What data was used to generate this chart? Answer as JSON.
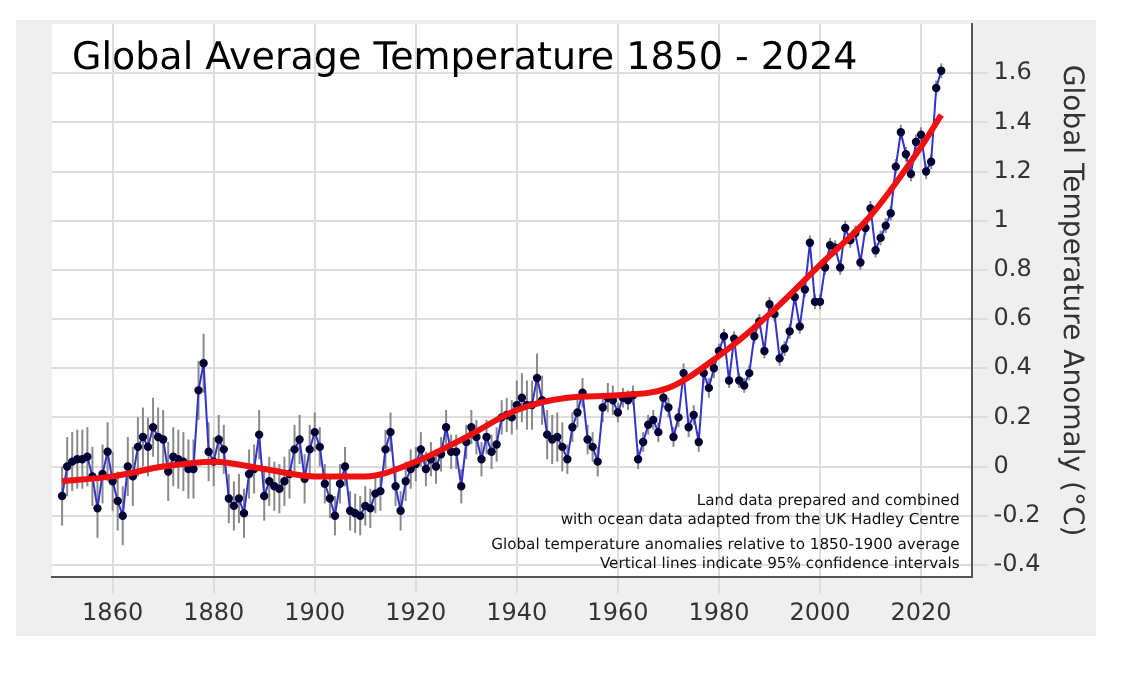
{
  "chart_data": {
    "type": "line",
    "title": "Global Average Temperature 1850 - 2024",
    "ylabel": "Global Temperature Anomaly (°C)",
    "annotations": [
      "Land data prepared and combined",
      "with ocean data adapted from the UK Hadley Centre",
      "Global temperature anomalies relative to 1850-1900 average",
      "Vertical lines indicate 95% confidence intervals"
    ],
    "xlim": [
      1848,
      2030
    ],
    "xticks": [
      1860,
      1880,
      1900,
      1920,
      1940,
      1960,
      1980,
      2000,
      2020
    ],
    "ylim": [
      -0.45,
      1.8
    ],
    "yticks": [
      {
        "value": -0.4,
        "label": "-0.4"
      },
      {
        "value": -0.2,
        "label": "-0.2"
      },
      0,
      0.2,
      0.4,
      0.6,
      0.8,
      1,
      1.2,
      1.4,
      1.6
    ],
    "grid": true,
    "marker": "circle",
    "line_style": "solid",
    "series": [
      {
        "color": "#3333cc",
        "x": [
          1850,
          1851,
          1852,
          1853,
          1854,
          1855,
          1856,
          1857,
          1858,
          1859,
          1860,
          1861,
          1862,
          1863,
          1864,
          1865,
          1866,
          1867,
          1868,
          1869,
          1870,
          1871,
          1872,
          1873,
          1874,
          1875,
          1876,
          1877,
          1878,
          1879,
          1880,
          1881,
          1882,
          1883,
          1884,
          1885,
          1886,
          1887,
          1888,
          1889,
          1890,
          1891,
          1892,
          1893,
          1894,
          1895,
          1896,
          1897,
          1898,
          1899,
          1900,
          1901,
          1902,
          1903,
          1904,
          1905,
          1906,
          1907,
          1908,
          1909,
          1910,
          1911,
          1912,
          1913,
          1914,
          1915,
          1916,
          1917,
          1918,
          1919,
          1920,
          1921,
          1922,
          1923,
          1924,
          1925,
          1926,
          1927,
          1928,
          1929,
          1930,
          1931,
          1932,
          1933,
          1934,
          1935,
          1936,
          1937,
          1938,
          1939,
          1940,
          1941,
          1942,
          1943,
          1944,
          1945,
          1946,
          1947,
          1948,
          1949,
          1950,
          1951,
          1952,
          1953,
          1954,
          1955,
          1956,
          1957,
          1958,
          1959,
          1960,
          1961,
          1962,
          1963,
          1964,
          1965,
          1966,
          1967,
          1968,
          1969,
          1970,
          1971,
          1972,
          1973,
          1974,
          1975,
          1976,
          1977,
          1978,
          1979,
          1980,
          1981,
          1982,
          1983,
          1984,
          1985,
          1986,
          1987,
          1988,
          1989,
          1990,
          1991,
          1992,
          1993,
          1994,
          1995,
          1996,
          1997,
          1998,
          1999,
          2000,
          2001,
          2002,
          2003,
          2004,
          2005,
          2006,
          2007,
          2008,
          2009,
          2010,
          2011,
          2012,
          2013,
          2014,
          2015,
          2016,
          2017,
          2018,
          2019,
          2020,
          2021,
          2022,
          2023,
          2024
        ],
        "values": [
          -0.12,
          0.0,
          0.02,
          0.03,
          0.03,
          0.04,
          -0.04,
          -0.17,
          -0.03,
          0.06,
          -0.06,
          -0.14,
          -0.2,
          0.0,
          -0.04,
          0.08,
          0.12,
          0.08,
          0.16,
          0.12,
          0.11,
          -0.02,
          0.04,
          0.03,
          0.02,
          -0.01,
          -0.01,
          0.31,
          0.42,
          0.06,
          0.02,
          0.11,
          0.07,
          -0.13,
          -0.16,
          -0.13,
          -0.19,
          -0.03,
          -0.01,
          0.13,
          -0.12,
          -0.06,
          -0.08,
          -0.09,
          -0.06,
          -0.03,
          0.07,
          0.11,
          -0.05,
          0.07,
          0.14,
          0.08,
          -0.07,
          -0.13,
          -0.2,
          -0.07,
          0.0,
          -0.18,
          -0.19,
          -0.2,
          -0.16,
          -0.17,
          -0.11,
          -0.1,
          0.07,
          0.14,
          -0.08,
          -0.18,
          -0.06,
          -0.01,
          0.01,
          0.07,
          -0.01,
          0.03,
          0.0,
          0.05,
          0.16,
          0.06,
          0.06,
          -0.08,
          0.1,
          0.16,
          0.12,
          0.03,
          0.12,
          0.06,
          0.09,
          0.2,
          0.21,
          0.2,
          0.25,
          0.28,
          0.25,
          0.25,
          0.36,
          0.27,
          0.13,
          0.11,
          0.12,
          0.08,
          0.03,
          0.16,
          0.22,
          0.3,
          0.11,
          0.08,
          0.02,
          0.24,
          0.28,
          0.27,
          0.22,
          0.28,
          0.27,
          0.29,
          0.03,
          0.1,
          0.17,
          0.19,
          0.14,
          0.28,
          0.24,
          0.12,
          0.2,
          0.38,
          0.16,
          0.21,
          0.1,
          0.38,
          0.32,
          0.4,
          0.47,
          0.53,
          0.35,
          0.52,
          0.35,
          0.33,
          0.38,
          0.53,
          0.59,
          0.47,
          0.66,
          0.62,
          0.44,
          0.48,
          0.55,
          0.69,
          0.57,
          0.72,
          0.91,
          0.67,
          0.67,
          0.81,
          0.9,
          0.89,
          0.81,
          0.97,
          0.92,
          0.95,
          0.83,
          0.97,
          1.05,
          0.88,
          0.93,
          0.98,
          1.03,
          1.22,
          1.36,
          1.27,
          1.19,
          1.32,
          1.35,
          1.2,
          1.24,
          1.54,
          1.61
        ],
        "errors": [
          0.12,
          0.12,
          0.12,
          0.12,
          0.12,
          0.12,
          0.12,
          0.12,
          0.12,
          0.12,
          0.12,
          0.12,
          0.12,
          0.12,
          0.12,
          0.12,
          0.12,
          0.12,
          0.12,
          0.12,
          0.12,
          0.12,
          0.12,
          0.12,
          0.12,
          0.12,
          0.12,
          0.12,
          0.12,
          0.12,
          0.1,
          0.1,
          0.1,
          0.1,
          0.1,
          0.1,
          0.1,
          0.1,
          0.1,
          0.1,
          0.1,
          0.1,
          0.1,
          0.1,
          0.1,
          0.1,
          0.1,
          0.1,
          0.1,
          0.1,
          0.08,
          0.08,
          0.08,
          0.08,
          0.08,
          0.08,
          0.08,
          0.08,
          0.08,
          0.08,
          0.08,
          0.08,
          0.08,
          0.08,
          0.08,
          0.08,
          0.08,
          0.08,
          0.08,
          0.08,
          0.07,
          0.07,
          0.07,
          0.07,
          0.07,
          0.07,
          0.07,
          0.07,
          0.07,
          0.07,
          0.07,
          0.07,
          0.07,
          0.07,
          0.07,
          0.07,
          0.07,
          0.07,
          0.07,
          0.07,
          0.1,
          0.1,
          0.1,
          0.1,
          0.1,
          0.1,
          0.1,
          0.1,
          0.1,
          0.1,
          0.06,
          0.06,
          0.06,
          0.06,
          0.06,
          0.06,
          0.06,
          0.06,
          0.06,
          0.06,
          0.04,
          0.04,
          0.04,
          0.04,
          0.04,
          0.04,
          0.04,
          0.04,
          0.04,
          0.04,
          0.04,
          0.04,
          0.04,
          0.04,
          0.04,
          0.04,
          0.04,
          0.04,
          0.04,
          0.04,
          0.03,
          0.03,
          0.03,
          0.03,
          0.03,
          0.03,
          0.03,
          0.03,
          0.03,
          0.03,
          0.03,
          0.03,
          0.03,
          0.03,
          0.03,
          0.03,
          0.03,
          0.03,
          0.03,
          0.03,
          0.03,
          0.03,
          0.03,
          0.03,
          0.03,
          0.03,
          0.03,
          0.03,
          0.03,
          0.03,
          0.03,
          0.03,
          0.03,
          0.03,
          0.03,
          0.03,
          0.03,
          0.03,
          0.03,
          0.03,
          0.03,
          0.03,
          0.03,
          0.03,
          0.03
        ]
      },
      {
        "color": "#ee1111",
        "marker": "none",
        "x": [
          1850,
          1860,
          1870,
          1880,
          1890,
          1900,
          1910,
          1920,
          1930,
          1940,
          1950,
          1960,
          1970,
          1980,
          1990,
          2000,
          2010,
          2020,
          2024
        ],
        "values": [
          -0.06,
          -0.04,
          0.0,
          0.02,
          -0.01,
          -0.04,
          -0.04,
          0.02,
          0.12,
          0.23,
          0.28,
          0.29,
          0.32,
          0.45,
          0.62,
          0.82,
          1.02,
          1.3,
          1.43
        ]
      }
    ]
  }
}
